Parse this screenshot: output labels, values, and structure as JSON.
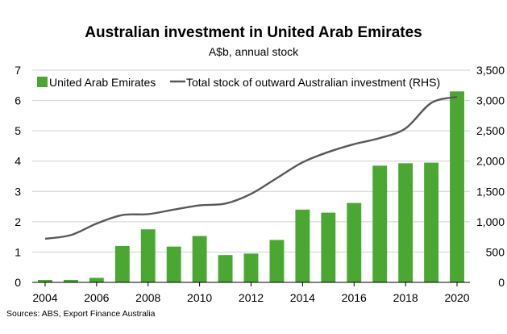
{
  "chart_data": {
    "type": "bar",
    "title": "Australian investment in United Arab Emirates",
    "subtitle": "A$b, annual stock",
    "source": "Sources: ABS, Export Finance Australia",
    "x": [
      2004,
      2005,
      2006,
      2007,
      2008,
      2009,
      2010,
      2011,
      2012,
      2013,
      2014,
      2015,
      2016,
      2017,
      2018,
      2019,
      2020
    ],
    "x_tick_labels": [
      "2004",
      "2006",
      "2008",
      "2010",
      "2012",
      "2014",
      "2016",
      "2018",
      "2020"
    ],
    "left_axis": {
      "ylim": [
        0,
        7
      ],
      "ticks": [
        "0",
        "1",
        "2",
        "3",
        "4",
        "5",
        "6",
        "7"
      ]
    },
    "right_axis": {
      "ylim": [
        0,
        3500
      ],
      "ticks": [
        "0",
        "500",
        "1,000",
        "1,500",
        "2,000",
        "2,500",
        "3,000",
        "3,500"
      ]
    },
    "grid": true,
    "legend_position": "top-left",
    "series": [
      {
        "name": "United Arab Emirates",
        "kind": "bar",
        "axis": "left",
        "color": "#4aa832",
        "values": [
          0.08,
          0.08,
          0.15,
          1.2,
          1.75,
          1.18,
          1.53,
          0.9,
          0.95,
          1.4,
          2.4,
          2.3,
          2.62,
          3.85,
          3.93,
          3.95,
          6.3
        ]
      },
      {
        "name": "Total stock of outward Australian investment (RHS)",
        "kind": "line",
        "axis": "right",
        "color": "#595959",
        "values": [
          720,
          780,
          970,
          1110,
          1125,
          1200,
          1270,
          1300,
          1460,
          1720,
          1980,
          2150,
          2280,
          2380,
          2540,
          2960,
          3060
        ]
      }
    ]
  }
}
